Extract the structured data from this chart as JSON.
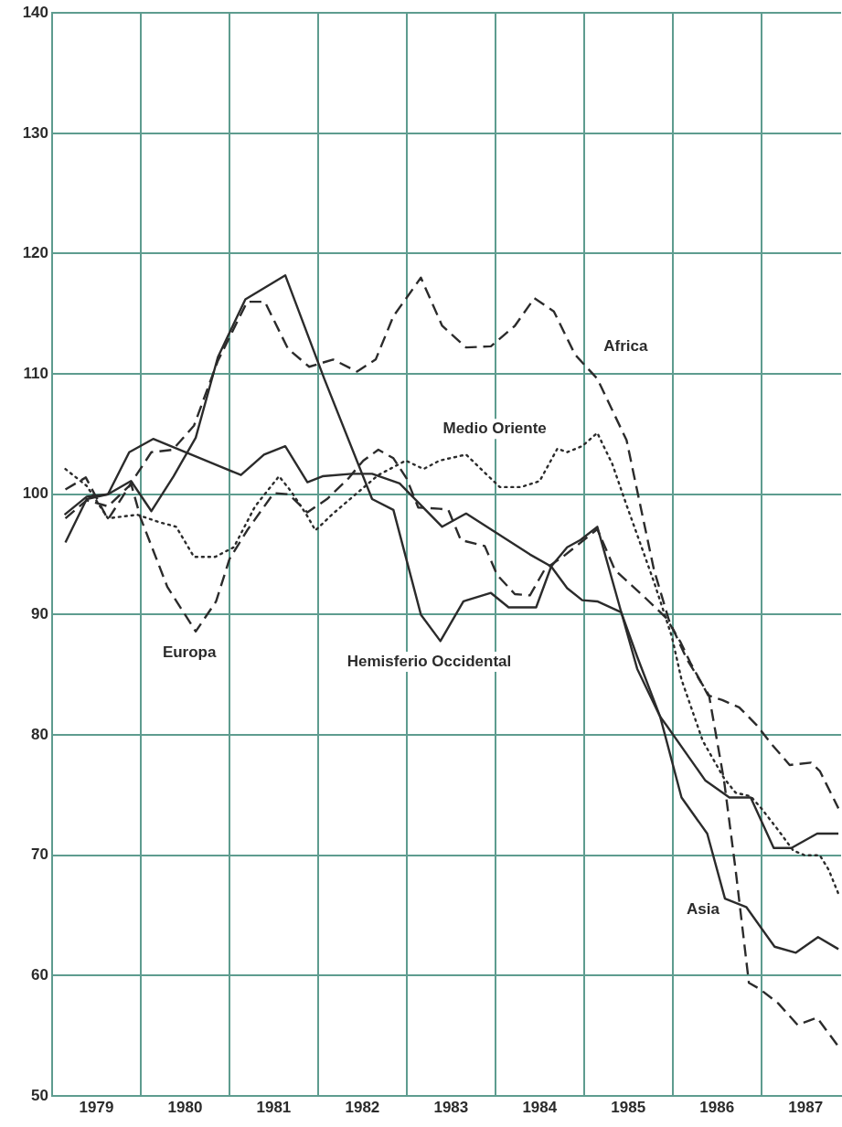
{
  "chart_data": {
    "type": "line",
    "xlim": [
      1979,
      1987.9
    ],
    "xticks": [
      {
        "value": 1979,
        "label": null
      },
      {
        "value": 1979.5,
        "label": "1979"
      },
      {
        "value": 1980,
        "label": null
      },
      {
        "value": 1980.5,
        "label": "1980"
      },
      {
        "value": 1981,
        "label": null
      },
      {
        "value": 1981.5,
        "label": "1981"
      },
      {
        "value": 1982,
        "label": null
      },
      {
        "value": 1982.5,
        "label": "1982"
      },
      {
        "value": 1983,
        "label": null
      },
      {
        "value": 1983.5,
        "label": "1983"
      },
      {
        "value": 1984,
        "label": null
      },
      {
        "value": 1984.5,
        "label": "1984"
      },
      {
        "value": 1985,
        "label": null
      },
      {
        "value": 1985.5,
        "label": "1985"
      },
      {
        "value": 1986,
        "label": null
      },
      {
        "value": 1986.5,
        "label": "1986"
      },
      {
        "value": 1987,
        "label": null
      },
      {
        "value": 1987.5,
        "label": "1987"
      }
    ],
    "ylim": [
      50,
      140
    ],
    "yticks": [
      50,
      60,
      70,
      80,
      90,
      100,
      110,
      120,
      130,
      140
    ],
    "grid": true,
    "series": [
      {
        "name": "Africa",
        "color": "#2b2b2b",
        "line_style": "dashed",
        "x": [
          1979.15,
          1979.39,
          1979.63,
          1979.87,
          1980.12,
          1980.36,
          1980.6,
          1980.87,
          1981.2,
          1981.4,
          1981.66,
          1981.9,
          1982.17,
          1982.44,
          1982.65,
          1982.85,
          1983.16,
          1983.4,
          1983.67,
          1983.95,
          1984.22,
          1984.44,
          1984.66,
          1984.9,
          1985.15,
          1985.48,
          1985.62,
          1985.79,
          1985.96,
          1986.16,
          1986.41,
          1986.58,
          1986.71,
          1986.86,
          1986.98,
          1987.19,
          1987.41,
          1987.63,
          1987.87
        ],
        "values": [
          98,
          99.5,
          99,
          100.7,
          103.5,
          103.7,
          105.7,
          111.1,
          116,
          116,
          112.1,
          110.6,
          111.2,
          110.2,
          111.2,
          114.8,
          118,
          114,
          112.2,
          112.3,
          114,
          116.3,
          115.2,
          111.6,
          109.6,
          104.5,
          99.6,
          93.7,
          89.5,
          86.3,
          83.3,
          76.2,
          68.8,
          59.4,
          58.9,
          57.7,
          55.9,
          56.5,
          54.1
        ]
      },
      {
        "name": "Medio Oriente",
        "color": "#2b2b2b",
        "line_style": "dotted",
        "x": [
          1979.15,
          1979.39,
          1979.63,
          1979.96,
          1980.2,
          1980.4,
          1980.6,
          1980.84,
          1981.05,
          1981.29,
          1981.56,
          1981.7,
          1981.87,
          1981.97,
          1982.17,
          1982.44,
          1982.68,
          1982.99,
          1983.19,
          1983.37,
          1983.67,
          1983.88,
          1984.05,
          1984.29,
          1984.5,
          1984.7,
          1984.81,
          1984.98,
          1985.15,
          1985.32,
          1985.48,
          1985.65,
          1985.79,
          1985.99,
          1986.1,
          1986.34,
          1986.58,
          1986.71,
          1986.88,
          1987.0,
          1987.19,
          1987.36,
          1987.49,
          1987.66,
          1987.76,
          1987.87
        ],
        "values": [
          102.1,
          100.7,
          98,
          98.3,
          97.7,
          97.3,
          94.8,
          94.8,
          95.6,
          99,
          101.5,
          100.2,
          98.3,
          97,
          98.4,
          100.1,
          101.6,
          102.8,
          102.1,
          102.8,
          103.3,
          101.8,
          100.6,
          100.6,
          101.1,
          103.8,
          103.5,
          104,
          105.1,
          102.5,
          99.1,
          95.6,
          92.7,
          88.2,
          84.6,
          79.5,
          76.4,
          75.2,
          74.9,
          73.9,
          72.1,
          70.4,
          70,
          70,
          68.8,
          66.8
        ]
      },
      {
        "name": "Europa",
        "color": "#2b2b2b",
        "line_style": "dashed",
        "x": [
          1979.15,
          1979.38,
          1979.63,
          1979.89,
          1980.0,
          1980.3,
          1980.62,
          1980.85,
          1981.0,
          1981.2,
          1981.5,
          1981.67,
          1981.88,
          1982.1,
          1982.34,
          1982.51,
          1982.68,
          1982.85,
          1983.0,
          1983.13,
          1983.37,
          1983.47,
          1983.61,
          1983.88,
          1984.02,
          1984.22,
          1984.39,
          1984.56,
          1984.76,
          1985.15,
          1985.35,
          1985.69,
          1985.93,
          1986.09,
          1986.2,
          1986.4,
          1986.56,
          1986.75,
          1986.95,
          1987.12,
          1987.32,
          1987.56,
          1987.66,
          1987.87
        ],
        "values": [
          100.4,
          101.4,
          97.9,
          100.9,
          98,
          92.3,
          88.6,
          91.1,
          94.6,
          97,
          100.1,
          100,
          98.5,
          99.6,
          101.3,
          102.8,
          103.7,
          103,
          101.3,
          98.9,
          98.8,
          98.7,
          96.2,
          95.7,
          93.3,
          91.7,
          91.6,
          93.8,
          94.8,
          97.1,
          93.7,
          91.4,
          89.7,
          87.7,
          86,
          83.3,
          82.9,
          82.3,
          80.8,
          79.2,
          77.5,
          77.7,
          77,
          73.9
        ]
      },
      {
        "name": "Hemisferio Occidental",
        "color": "#2b2b2b",
        "line_style": "solid",
        "x": [
          1979.15,
          1979.39,
          1979.63,
          1979.89,
          1980.12,
          1980.37,
          1980.62,
          1980.87,
          1981.18,
          1981.63,
          1982.07,
          1982.61,
          1982.85,
          1983.16,
          1983.38,
          1983.64,
          1983.95,
          1984.15,
          1984.46,
          1984.63,
          1984.81,
          1984.96,
          1985.15,
          1985.42,
          1985.6,
          1985.86,
          1985.93,
          1986.37,
          1986.64,
          1986.88,
          1987.14,
          1987.34,
          1987.63,
          1987.87
        ],
        "values": [
          96,
          99.6,
          100,
          101.1,
          98.6,
          101.5,
          104.7,
          111.4,
          116.2,
          118.2,
          109.6,
          99.6,
          98.7,
          90,
          87.8,
          91.1,
          91.8,
          90.6,
          90.6,
          94,
          95.6,
          96.2,
          97.3,
          90.2,
          86.5,
          81.5,
          80.8,
          76.2,
          74.8,
          74.8,
          70.6,
          70.6,
          71.8,
          71.8
        ]
      },
      {
        "name": "Asia",
        "color": "#2b2b2b",
        "line_style": "solid",
        "x": [
          1979.14,
          1979.39,
          1979.63,
          1979.87,
          1980.14,
          1981.13,
          1981.39,
          1981.63,
          1981.88,
          1982.05,
          1982.38,
          1982.61,
          1982.92,
          1983.4,
          1983.67,
          1984.39,
          1984.63,
          1984.81,
          1984.98,
          1985.15,
          1985.42,
          1985.6,
          1985.86,
          1986.1,
          1986.39,
          1986.59,
          1986.83,
          1987.15,
          1987.39,
          1987.64,
          1987.87
        ],
        "values": [
          98.3,
          99.8,
          100,
          103.5,
          104.6,
          101.6,
          103.3,
          104,
          101,
          101.5,
          101.7,
          101.7,
          100.9,
          97.3,
          98.4,
          95,
          94,
          92.2,
          91.2,
          91.1,
          90.2,
          85.5,
          81.5,
          74.8,
          71.8,
          66.4,
          65.7,
          62.4,
          61.9,
          63.2,
          62.2
        ]
      }
    ]
  }
}
